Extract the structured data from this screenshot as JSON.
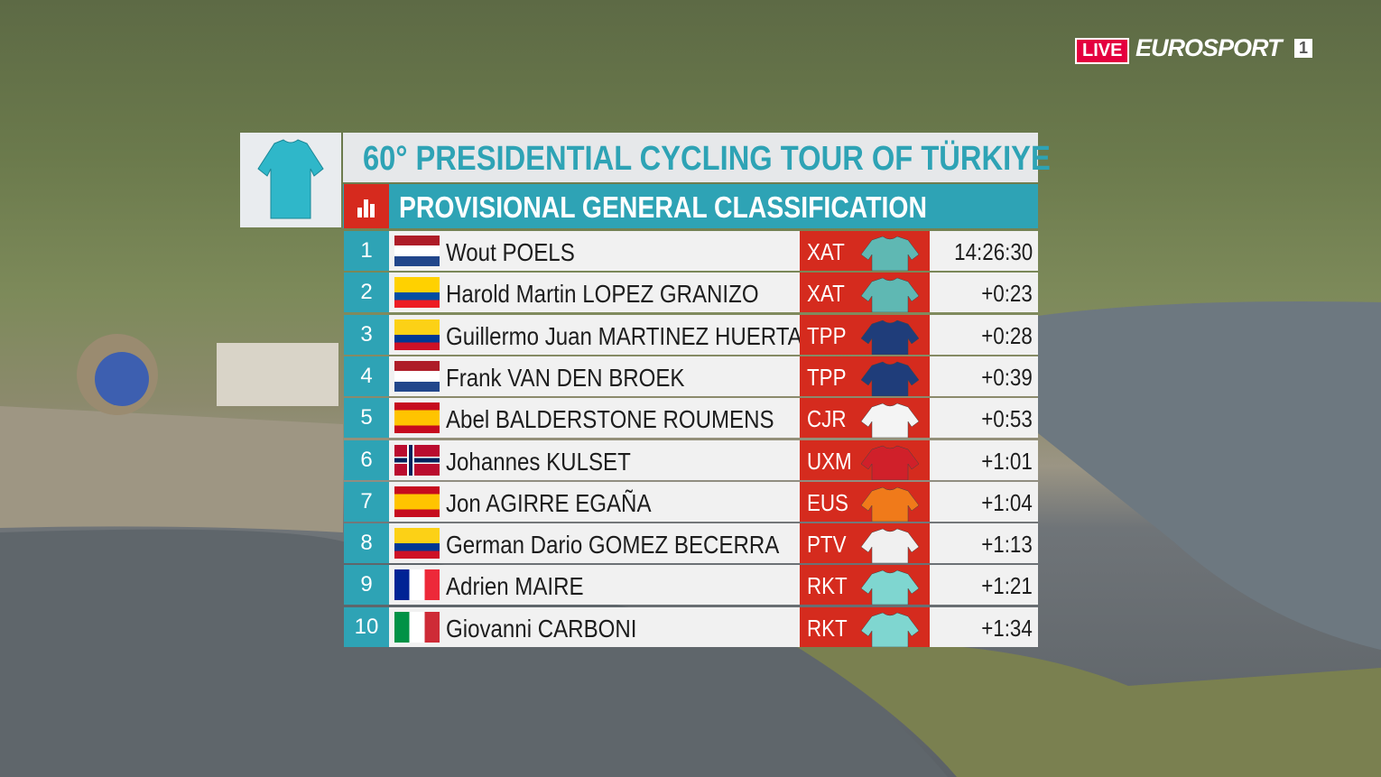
{
  "broadcast": {
    "live": "LIVE",
    "channel": "EUROSPORT",
    "channel_number": "1"
  },
  "header": {
    "title": "60° PRESIDENTIAL CYCLING TOUR OF TÜRKIYE",
    "subtitle": "PROVISIONAL GENERAL CLASSIFICATION"
  },
  "table": {
    "rows": [
      [
        "1",
        "Wout POELS",
        "XAT",
        "14:26:30"
      ],
      [
        "2",
        "Harold Martin LOPEZ GRANIZO",
        "XAT",
        "+0:23"
      ],
      [
        "3",
        "Guillermo Juan MARTINEZ HUERTAS",
        "TPP",
        "+0:28"
      ],
      [
        "4",
        "Frank VAN DEN BROEK",
        "TPP",
        "+0:39"
      ],
      [
        "5",
        "Abel BALDERSTONE ROUMENS",
        "CJR",
        "+0:53"
      ],
      [
        "6",
        "Johannes KULSET",
        "UXM",
        "+1:01"
      ],
      [
        "7",
        "Jon AGIRRE EGAÑA",
        "EUS",
        "+1:04"
      ],
      [
        "8",
        "German Dario GOMEZ BECERRA",
        "PTV",
        "+1:13"
      ],
      [
        "9",
        "Adrien MAIRE",
        "RKT",
        "+1:21"
      ],
      [
        "10",
        "Giovanni CARBONI",
        "RKT",
        "+1:34"
      ]
    ]
  }
}
